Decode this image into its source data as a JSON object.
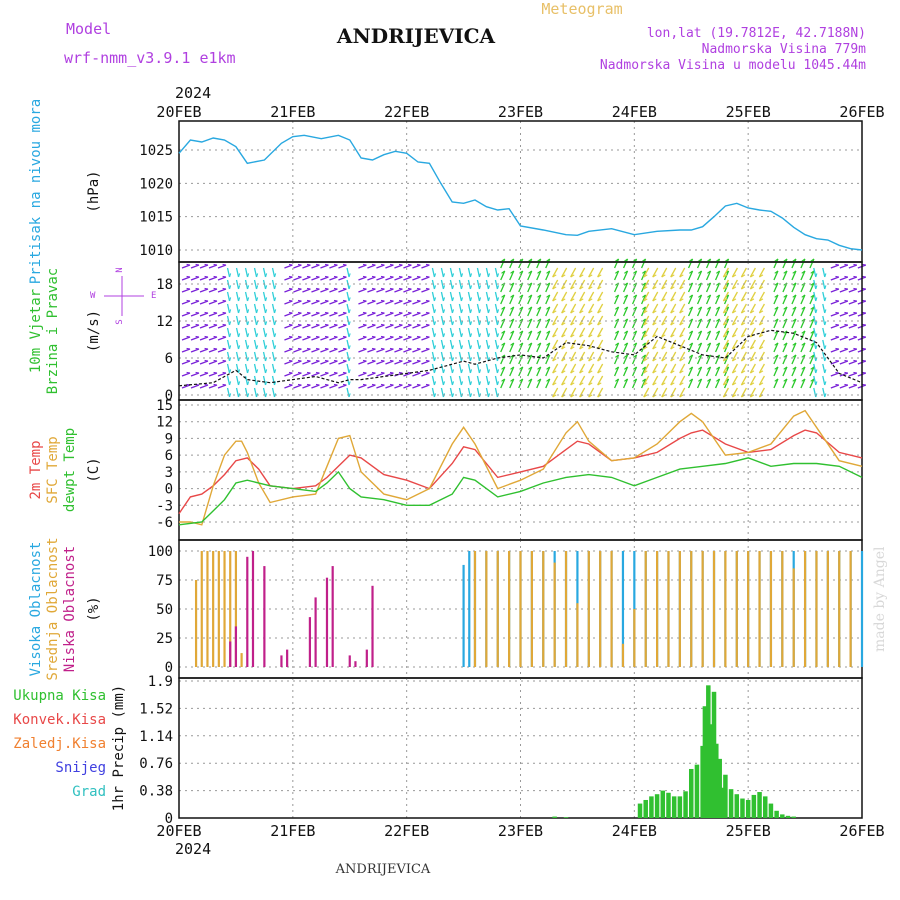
{
  "header": {
    "model_label": "Model",
    "model_name": "wrf-nmm_v3.9.1 e1km",
    "title": "ANDRIJEVICA",
    "subtitle": "Meteogram",
    "lonlat": "lon,lat (19.7812E, 42.7188N)",
    "altitude": "Nadmorska Visina 779m",
    "model_altitude": "Nadmorska Visina u modelu 1045.44m"
  },
  "footer": {
    "location": "ANDRIJEVICA",
    "credit": "made by Angel"
  },
  "colors": {
    "pressure": "#29a8e0",
    "wind_slow": "#7a22d8",
    "wind_mid": "#2ecfd8",
    "wind_fast": "#2ac82a",
    "wind_faster": "#e0d040",
    "wind_max": "#f02070",
    "t2m": "#e84848",
    "tsfc": "#e0a838",
    "dewpt": "#30c030",
    "cloud_high": "#29a8e0",
    "cloud_mid": "#e0a838",
    "cloud_low": "#c0208a",
    "precip_total": "#30c030",
    "precip_conv": "#e84848",
    "precip_frz": "#f08030",
    "precip_snow": "#4040e0",
    "precip_grad": "#30c0c0",
    "label_model": "#b040e0"
  },
  "chart_data": {
    "type": "line",
    "year": "2024",
    "x_dates": [
      "20FEB",
      "21FEB",
      "22FEB",
      "23FEB",
      "24FEB",
      "25FEB",
      "26FEB"
    ],
    "panels": [
      {
        "id": "pressure",
        "ylabels": [
          "Pritisak na nivou mora",
          "(hPa)"
        ],
        "yticks": [
          "1010",
          "1015",
          "1020",
          "1025"
        ],
        "ylim": [
          1009,
          1028
        ],
        "series": [
          {
            "name": "Pritisak na nivou mora",
            "x": [
              0,
              0.1,
              0.2,
              0.3,
              0.4,
              0.5,
              0.6,
              0.75,
              0.9,
              1.0,
              1.1,
              1.25,
              1.4,
              1.5,
              1.6,
              1.7,
              1.8,
              1.9,
              2.0,
              2.1,
              2.2,
              2.3,
              2.4,
              2.5,
              2.6,
              2.7,
              2.8,
              2.9,
              3.0,
              3.2,
              3.4,
              3.5,
              3.6,
              3.8,
              4.0,
              4.2,
              4.4,
              4.5,
              4.6,
              4.7,
              4.8,
              4.9,
              5.0,
              5.1,
              5.2,
              5.3,
              5.4,
              5.5,
              5.6,
              5.7,
              5.8,
              5.9,
              6.0
            ],
            "values": [
              1024.5,
              1026.5,
              1026.2,
              1026.8,
              1026.5,
              1025.5,
              1023.0,
              1023.5,
              1026.0,
              1027.0,
              1027.2,
              1026.7,
              1027.2,
              1026.5,
              1023.8,
              1023.5,
              1024.3,
              1024.8,
              1024.5,
              1023.2,
              1023.0,
              1020.0,
              1017.2,
              1017.0,
              1017.5,
              1016.5,
              1016.0,
              1016.2,
              1013.6,
              1013.0,
              1012.3,
              1012.2,
              1012.8,
              1013.2,
              1012.3,
              1012.8,
              1013.0,
              1013.0,
              1013.5,
              1015.0,
              1016.6,
              1017.0,
              1016.3,
              1016.0,
              1015.8,
              1014.8,
              1013.4,
              1012.3,
              1011.7,
              1011.5,
              1010.7,
              1010.2,
              1010.0
            ]
          }
        ]
      },
      {
        "id": "wind",
        "ylabels": [
          "10m Vjetar",
          "Brzina i Pravac",
          "(m/s)"
        ],
        "compass": [
          "N",
          "W",
          "E",
          "S"
        ],
        "yticks": [
          "0",
          "6",
          "12",
          "18"
        ],
        "ylim": [
          0,
          21
        ],
        "series": [
          {
            "name": "Brzina",
            "x": [
              0,
              0.3,
              0.5,
              0.6,
              0.8,
              1.0,
              1.2,
              1.4,
              1.5,
              1.6,
              1.8,
              2.0,
              2.2,
              2.4,
              2.5,
              2.6,
              2.8,
              3.0,
              3.2,
              3.4,
              3.6,
              3.8,
              4.0,
              4.2,
              4.4,
              4.6,
              4.8,
              5.0,
              5.2,
              5.4,
              5.6,
              5.8,
              6.0
            ],
            "values": [
              1.5,
              2.0,
              4.0,
              2.5,
              2.0,
              2.5,
              3.0,
              2.0,
              2.5,
              2.5,
              3.0,
              3.5,
              4.0,
              5.0,
              5.5,
              5.0,
              6.0,
              6.5,
              6.0,
              8.5,
              8.0,
              7.0,
              6.5,
              9.5,
              8.0,
              6.5,
              6.0,
              9.5,
              10.5,
              10.0,
              8.5,
              3.5,
              2.0
            ]
          }
        ],
        "wind_bands": [
          {
            "name": "slow",
            "x": [
              0,
              0.4
            ]
          },
          {
            "name": "mid",
            "x": [
              0.4,
              0.9
            ]
          },
          {
            "name": "slow",
            "x": [
              0.9,
              1.45
            ]
          },
          {
            "name": "mid",
            "x": [
              1.45,
              1.55
            ]
          },
          {
            "name": "slow",
            "x": [
              1.55,
              2.2
            ]
          },
          {
            "name": "mid",
            "x": [
              2.2,
              2.8
            ]
          },
          {
            "name": "fast",
            "x": [
              2.8,
              3.3
            ]
          },
          {
            "name": "faster",
            "x": [
              3.3,
              3.8
            ]
          },
          {
            "name": "fast",
            "x": [
              3.8,
              4.1
            ]
          },
          {
            "name": "faster",
            "x": [
              4.1,
              4.45
            ]
          },
          {
            "name": "fast",
            "x": [
              4.45,
              4.8
            ]
          },
          {
            "name": "faster",
            "x": [
              4.8,
              5.2
            ]
          },
          {
            "name": "fast",
            "x": [
              5.2,
              5.55
            ]
          },
          {
            "name": "mid",
            "x": [
              5.55,
              5.7
            ]
          },
          {
            "name": "slow",
            "x": [
              5.7,
              6.0
            ]
          }
        ]
      },
      {
        "id": "temperature",
        "ylabels": [
          "2m Temp",
          "SFC Temp",
          "dewpt Temp",
          "(C)"
        ],
        "yticks": [
          "-6",
          "-3",
          "0",
          "3",
          "6",
          "9",
          "12",
          "15"
        ],
        "ylim": [
          -8,
          15
        ],
        "series": [
          {
            "name": "2m Temp",
            "x": [
              0,
              0.1,
              0.2,
              0.3,
              0.4,
              0.5,
              0.6,
              0.7,
              0.8,
              1.0,
              1.2,
              1.3,
              1.4,
              1.5,
              1.6,
              1.8,
              2.0,
              2.2,
              2.4,
              2.5,
              2.6,
              2.8,
              3.0,
              3.2,
              3.4,
              3.5,
              3.6,
              3.8,
              4.0,
              4.2,
              4.4,
              4.5,
              4.6,
              4.8,
              5.0,
              5.2,
              5.4,
              5.5,
              5.6,
              5.8,
              6.0
            ],
            "values": [
              -4.5,
              -1.5,
              -1.0,
              0.5,
              2.5,
              5.0,
              5.5,
              3.5,
              0.5,
              0.0,
              0.5,
              2.0,
              4.0,
              6.0,
              5.5,
              2.5,
              1.5,
              0.0,
              4.5,
              7.5,
              7.0,
              2.0,
              3.0,
              4.0,
              7.0,
              8.5,
              8.0,
              5.0,
              5.5,
              6.5,
              9.0,
              10.0,
              10.5,
              8.0,
              6.5,
              7.0,
              9.5,
              10.5,
              10.0,
              6.5,
              5.5
            ]
          },
          {
            "name": "SFC Temp",
            "x": [
              0,
              0.1,
              0.2,
              0.3,
              0.4,
              0.5,
              0.55,
              0.6,
              0.7,
              0.8,
              1.0,
              1.2,
              1.3,
              1.4,
              1.5,
              1.6,
              1.8,
              2.0,
              2.2,
              2.4,
              2.5,
              2.6,
              2.8,
              3.0,
              3.2,
              3.4,
              3.5,
              3.6,
              3.8,
              4.0,
              4.2,
              4.4,
              4.5,
              4.6,
              4.8,
              5.0,
              5.2,
              5.4,
              5.5,
              5.6,
              5.8,
              6.0
            ],
            "values": [
              -6.0,
              -6.0,
              -6.5,
              0.5,
              6.0,
              8.5,
              8.5,
              6.5,
              1.0,
              -2.5,
              -1.5,
              -1.0,
              4.0,
              9.0,
              9.5,
              3.0,
              -1.0,
              -2.0,
              0.0,
              8.0,
              11.0,
              8.0,
              0.0,
              1.5,
              3.5,
              10.0,
              12.0,
              8.5,
              5.0,
              5.5,
              8.0,
              12.0,
              13.5,
              12.0,
              6.0,
              6.5,
              8.0,
              13.0,
              14.0,
              11.0,
              5.0,
              4.0
            ]
          },
          {
            "name": "dewpt Temp",
            "x": [
              0,
              0.2,
              0.3,
              0.4,
              0.5,
              0.6,
              0.8,
              1.0,
              1.2,
              1.3,
              1.4,
              1.5,
              1.6,
              1.8,
              2.0,
              2.2,
              2.4,
              2.5,
              2.6,
              2.8,
              3.0,
              3.2,
              3.4,
              3.6,
              3.8,
              4.0,
              4.2,
              4.4,
              4.6,
              4.8,
              5.0,
              5.2,
              5.4,
              5.6,
              5.8,
              6.0
            ],
            "values": [
              -6.5,
              -6.0,
              -4.0,
              -2.0,
              1.0,
              1.5,
              0.5,
              0.0,
              -0.5,
              1.0,
              3.0,
              0.0,
              -1.5,
              -2.0,
              -3.0,
              -3.0,
              -1.0,
              2.0,
              1.5,
              -1.5,
              -0.5,
              1.0,
              2.0,
              2.5,
              2.0,
              0.5,
              2.0,
              3.5,
              4.0,
              4.5,
              5.5,
              4.0,
              4.5,
              4.5,
              4.0,
              2.0
            ]
          }
        ]
      },
      {
        "id": "cloud",
        "ylabels": [
          "Visoka Oblacnost",
          "Srednja Oblacnost",
          "Niska Oblacnost",
          "(%)"
        ],
        "yticks": [
          "0",
          "25",
          "50",
          "75",
          "100"
        ],
        "ylim": [
          0,
          100
        ],
        "series": [
          {
            "name": "Visoka Oblacnost",
            "x": [
              2.5,
              2.55,
              2.6,
              2.7,
              2.8,
              2.9,
              3.0,
              3.1,
              3.2,
              3.3,
              3.4,
              3.5,
              3.6,
              3.7,
              3.8,
              3.9,
              4.0,
              4.1,
              4.2,
              4.3,
              4.4,
              4.5,
              4.6,
              4.7,
              4.8,
              4.9,
              5.0,
              5.1,
              5.2,
              5.3,
              5.4,
              5.5,
              5.6,
              5.7,
              5.8,
              5.9,
              6.0
            ],
            "values": [
              88,
              100,
              100,
              100,
              100,
              100,
              100,
              100,
              100,
              100,
              100,
              100,
              100,
              100,
              100,
              100,
              100,
              100,
              100,
              100,
              100,
              100,
              100,
              100,
              100,
              100,
              100,
              100,
              100,
              100,
              100,
              100,
              100,
              100,
              100,
              100,
              100
            ]
          },
          {
            "name": "Srednja Oblacnost",
            "x": [
              0.15,
              0.2,
              0.25,
              0.3,
              0.35,
              0.4,
              0.45,
              0.5,
              0.55,
              2.6,
              2.7,
              2.8,
              2.9,
              3.0,
              3.1,
              3.2,
              3.3,
              3.4,
              3.5,
              3.6,
              3.7,
              3.8,
              3.9,
              4.0,
              4.1,
              4.2,
              4.3,
              4.4,
              4.5,
              4.6,
              4.7,
              4.8,
              4.9,
              5.0,
              5.1,
              5.2,
              5.3,
              5.4,
              5.5,
              5.6,
              5.7,
              5.8,
              5.9
            ],
            "values": [
              75,
              100,
              100,
              100,
              100,
              100,
              100,
              100,
              12,
              100,
              100,
              100,
              100,
              100,
              100,
              100,
              90,
              100,
              55,
              100,
              100,
              100,
              20,
              50,
              100,
              100,
              100,
              100,
              100,
              100,
              100,
              100,
              100,
              100,
              100,
              100,
              100,
              85,
              100,
              100,
              100,
              100,
              100
            ]
          },
          {
            "name": "Niska Oblacnost",
            "x": [
              0.45,
              0.5,
              0.6,
              0.65,
              0.75,
              0.9,
              0.95,
              1.15,
              1.2,
              1.3,
              1.35,
              1.5,
              1.55,
              1.65,
              1.7
            ],
            "values": [
              22,
              35,
              95,
              100,
              87,
              10,
              15,
              43,
              60,
              77,
              87,
              10,
              5,
              15,
              70
            ]
          }
        ]
      },
      {
        "id": "precip",
        "ylabels": [
          "Ukupna Kisa",
          "Konvek.Kisa",
          "Zaledj.Kisa",
          "Snijeg",
          "Grad",
          "1hr Precip (mm)"
        ],
        "yticks": [
          "0",
          "0.38",
          "0.76",
          "1.14",
          "1.52",
          "1.9"
        ],
        "ylim": [
          0,
          1.9
        ],
        "series": [
          {
            "name": "Ukupna Kisa",
            "x": [
              3.3,
              3.4,
              4.05,
              4.1,
              4.15,
              4.2,
              4.25,
              4.3,
              4.35,
              4.4,
              4.45,
              4.5,
              4.55,
              4.6,
              4.62,
              4.65,
              4.68,
              4.7,
              4.72,
              4.75,
              4.78,
              4.8,
              4.85,
              4.9,
              4.95,
              5.0,
              5.05,
              5.1,
              5.15,
              5.2,
              5.25,
              5.3,
              5.35,
              5.4
            ],
            "values": [
              0.02,
              0.01,
              0.2,
              0.25,
              0.3,
              0.33,
              0.38,
              0.35,
              0.3,
              0.3,
              0.37,
              0.68,
              0.74,
              1.0,
              1.55,
              1.84,
              1.3,
              1.75,
              1.03,
              0.82,
              0.42,
              0.6,
              0.4,
              0.33,
              0.27,
              0.25,
              0.32,
              0.36,
              0.3,
              0.2,
              0.1,
              0.05,
              0.03,
              0.02
            ]
          }
        ]
      }
    ]
  }
}
